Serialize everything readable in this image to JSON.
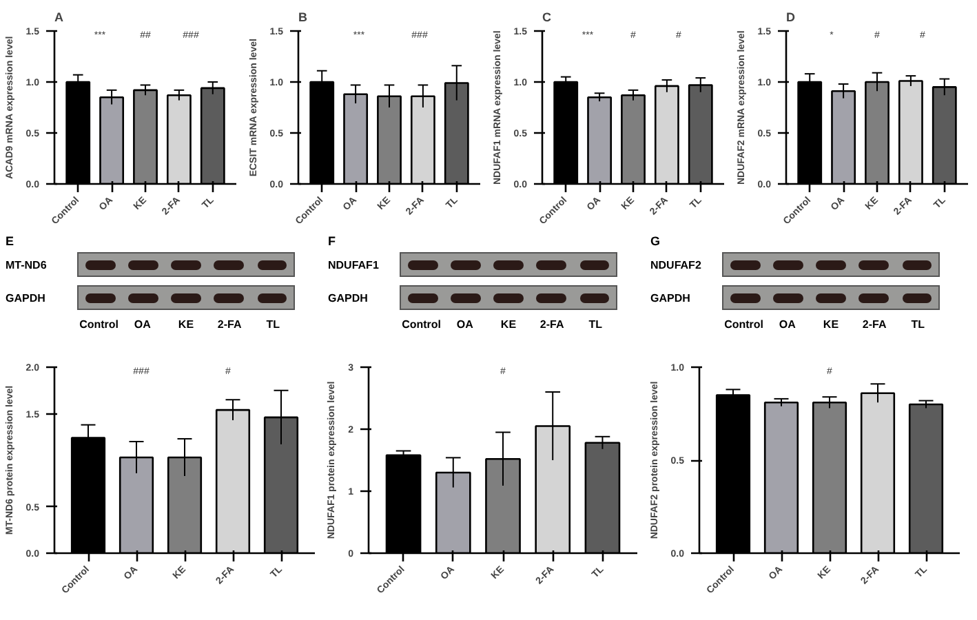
{
  "chart_data": [
    {
      "type": "bar",
      "title": "A",
      "ylabel": "ACAD9 mRNA expression level",
      "categories": [
        "Control",
        "OA",
        "KE",
        "2-FA",
        "TL"
      ],
      "values": [
        1.0,
        0.85,
        0.92,
        0.87,
        0.94
      ],
      "errors": [
        0.07,
        0.07,
        0.05,
        0.05,
        0.06
      ],
      "colors": [
        "#000000",
        "#a2a2aa",
        "#7f7f7f",
        "#d4d4d4",
        "#5c5c5c"
      ],
      "ylim": [
        0,
        1.5
      ],
      "yticks": [
        {
          "value": 0,
          "label": "0.0"
        },
        0.5,
        {
          "value": 1,
          "label": "1.0"
        },
        1.5
      ],
      "annotations": [
        "***",
        "##",
        "###"
      ]
    },
    {
      "type": "bar",
      "title": "B",
      "ylabel": "ECSIT mRNA expression level",
      "categories": [
        "Control",
        "OA",
        "KE",
        "2-FA",
        "TL"
      ],
      "values": [
        1.0,
        0.88,
        0.86,
        0.86,
        0.99
      ],
      "errors": [
        0.11,
        0.09,
        0.11,
        0.11,
        0.17
      ],
      "colors": [
        "#000000",
        "#a2a2aa",
        "#7f7f7f",
        "#d4d4d4",
        "#5c5c5c"
      ],
      "ylim": [
        0,
        1.5
      ],
      "yticks": [
        {
          "value": 0,
          "label": "0.0"
        },
        0.5,
        {
          "value": 1,
          "label": "1.0"
        },
        1.5
      ],
      "annotations": [
        "***",
        "###"
      ]
    },
    {
      "type": "bar",
      "title": "C",
      "ylabel": "NDUFAF1 mRNA expression level",
      "categories": [
        "Control",
        "OA",
        "KE",
        "2-FA",
        "TL"
      ],
      "values": [
        1.0,
        0.85,
        0.87,
        0.96,
        0.97
      ],
      "errors": [
        0.05,
        0.04,
        0.05,
        0.06,
        0.07
      ],
      "colors": [
        "#000000",
        "#a2a2aa",
        "#7f7f7f",
        "#d4d4d4",
        "#5c5c5c"
      ],
      "ylim": [
        0,
        1.5
      ],
      "yticks": [
        {
          "value": 0,
          "label": "0.0"
        },
        0.5,
        {
          "value": 1,
          "label": "1.0"
        },
        1.5
      ],
      "annotations": [
        "***",
        "#",
        "#"
      ]
    },
    {
      "type": "bar",
      "title": "D",
      "ylabel": "NDUFAF2 mRNA expression level",
      "categories": [
        "Control",
        "OA",
        "KE",
        "2-FA",
        "TL"
      ],
      "values": [
        1.0,
        0.91,
        1.0,
        1.01,
        0.95
      ],
      "errors": [
        0.08,
        0.07,
        0.09,
        0.05,
        0.08
      ],
      "colors": [
        "#000000",
        "#a2a2aa",
        "#7f7f7f",
        "#d4d4d4",
        "#5c5c5c"
      ],
      "ylim": [
        0,
        1.5
      ],
      "yticks": [
        {
          "value": 0,
          "label": "0.0"
        },
        0.5,
        {
          "value": 1,
          "label": "1.0"
        },
        1.5
      ],
      "annotations": [
        "*",
        "#",
        "#"
      ]
    },
    {
      "type": "other",
      "title": "E",
      "categories": [
        "Control",
        "OA",
        "KE",
        "2-FA",
        "TL"
      ],
      "annotations": [
        "MT-ND6",
        "GAPDH"
      ]
    },
    {
      "type": "bar",
      "ylabel": "MT-ND6 protein expression level",
      "categories": [
        "Control",
        "OA",
        "KE",
        "2-FA",
        "TL"
      ],
      "values": [
        1.24,
        1.03,
        1.03,
        1.54,
        1.46
      ],
      "errors": [
        0.14,
        0.17,
        0.2,
        0.11,
        0.29
      ],
      "colors": [
        "#000000",
        "#a2a2aa",
        "#7f7f7f",
        "#d4d4d4",
        "#5c5c5c"
      ],
      "ylim": [
        0,
        2
      ],
      "yticks": [
        {
          "value": 0,
          "label": "0.0"
        },
        0.5,
        1.5,
        {
          "value": 2,
          "label": "2.0"
        }
      ],
      "annotations": [
        "###",
        "#"
      ]
    },
    {
      "type": "other",
      "title": "F",
      "categories": [
        "Control",
        "OA",
        "KE",
        "2-FA",
        "TL"
      ],
      "annotations": [
        "NDUFAF1",
        "GAPDH"
      ]
    },
    {
      "type": "bar",
      "ylabel": "NDUFAF1 protein expression level",
      "categories": [
        "Control",
        "OA",
        "KE",
        "2-FA",
        "TL"
      ],
      "values": [
        1.58,
        1.3,
        1.52,
        2.05,
        1.78
      ],
      "errors": [
        0.07,
        0.24,
        0.43,
        0.55,
        0.1
      ],
      "colors": [
        "#000000",
        "#a2a2aa",
        "#7f7f7f",
        "#d4d4d4",
        "#5c5c5c"
      ],
      "ylim": [
        0,
        3
      ],
      "yticks": [
        0,
        1,
        2,
        3
      ],
      "annotations": [
        "#"
      ]
    },
    {
      "type": "other",
      "title": "G",
      "categories": [
        "Control",
        "OA",
        "KE",
        "2-FA",
        "TL"
      ],
      "annotations": [
        "NDUFAF2",
        "GAPDH"
      ]
    },
    {
      "type": "bar",
      "ylabel": "NDUFAF2 protein expression level",
      "categories": [
        "Control",
        "OA",
        "KE",
        "2-FA",
        "TL"
      ],
      "values": [
        0.85,
        0.81,
        0.81,
        0.86,
        0.8
      ],
      "errors": [
        0.03,
        0.02,
        0.03,
        0.05,
        0.02
      ],
      "colors": [
        "#000000",
        "#a2a2aa",
        "#7f7f7f",
        "#d4d4d4",
        "#5c5c5c"
      ],
      "ylim": [
        0,
        1.0
      ],
      "yticks": [
        {
          "value": 0,
          "label": "0.0"
        },
        0.5,
        {
          "value": 1,
          "label": "1.0"
        }
      ],
      "annotations": [
        "#"
      ]
    }
  ]
}
